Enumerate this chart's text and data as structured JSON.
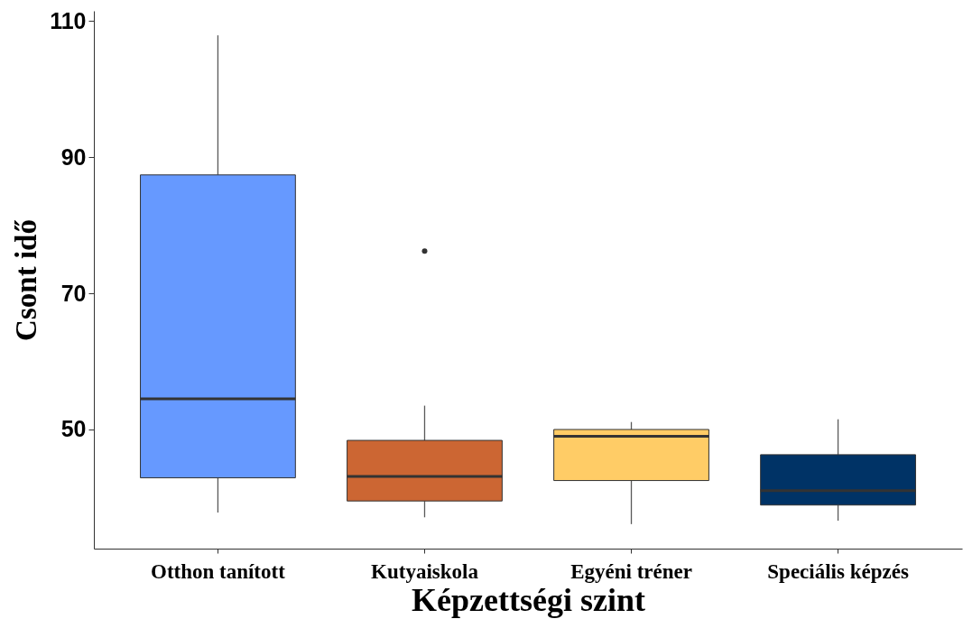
{
  "chart_data": {
    "type": "box",
    "xlabel": "Képzettségi szint",
    "ylabel": "Csont idő",
    "categories": [
      "Otthon tanított",
      "Kutyaiskola",
      "Egyéni tréner",
      "Speciális képzés"
    ],
    "colors": [
      "#6699ff",
      "#cc6633",
      "#ffcc66",
      "#003366"
    ],
    "boxes": [
      {
        "low": 37.8,
        "q1": 42.9,
        "median": 54.5,
        "q3": 87.4,
        "high": 107.9
      },
      {
        "low": 37.1,
        "q1": 39.5,
        "median": 43.1,
        "q3": 48.4,
        "high": 53.5,
        "outliers": [
          76.2
        ]
      },
      {
        "low": 36.1,
        "q1": 42.5,
        "median": 49.0,
        "q3": 50.0,
        "high": 51.1
      },
      {
        "low": 36.6,
        "q1": 38.9,
        "median": 41.0,
        "q3": 46.3,
        "high": 51.5
      }
    ],
    "ylim": [
      32.5,
      111.5
    ],
    "yticks": [
      50,
      70,
      90,
      110
    ]
  }
}
